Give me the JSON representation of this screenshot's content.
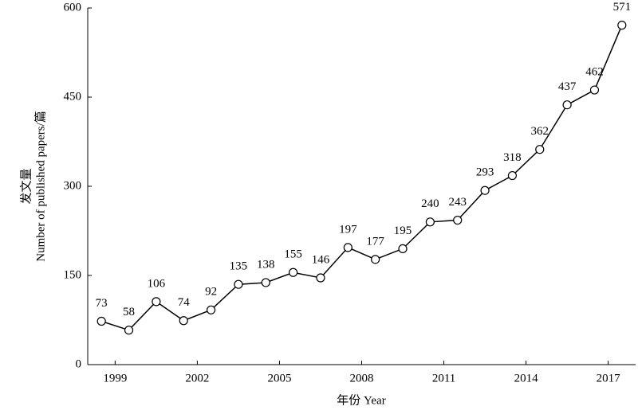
{
  "chart_data": {
    "type": "line",
    "ylabel": [
      "发文量",
      "Number of published papers/篇"
    ],
    "xlabel": "年份 Year",
    "x": [
      1998.5,
      1999.5,
      2000.5,
      2001.5,
      2002.5,
      2003.5,
      2004.5,
      2005.5,
      2006.5,
      2007.5,
      2008.5,
      2009.5,
      2010.5,
      2011.5,
      2012.5,
      2013.5,
      2014.5,
      2015.5,
      2016.5,
      2017.5
    ],
    "values": [
      73,
      58,
      106,
      74,
      92,
      135,
      138,
      155,
      146,
      197,
      177,
      195,
      240,
      243,
      293,
      318,
      362,
      437,
      462,
      571
    ],
    "color": "#000000",
    "xlim": [
      1998,
      2018
    ],
    "xticks": [
      1999,
      2002,
      2005,
      2008,
      2011,
      2014,
      2017
    ],
    "ylim": [
      0,
      600
    ],
    "yticks": [
      0,
      150,
      300,
      450,
      600
    ],
    "grid": false
  }
}
